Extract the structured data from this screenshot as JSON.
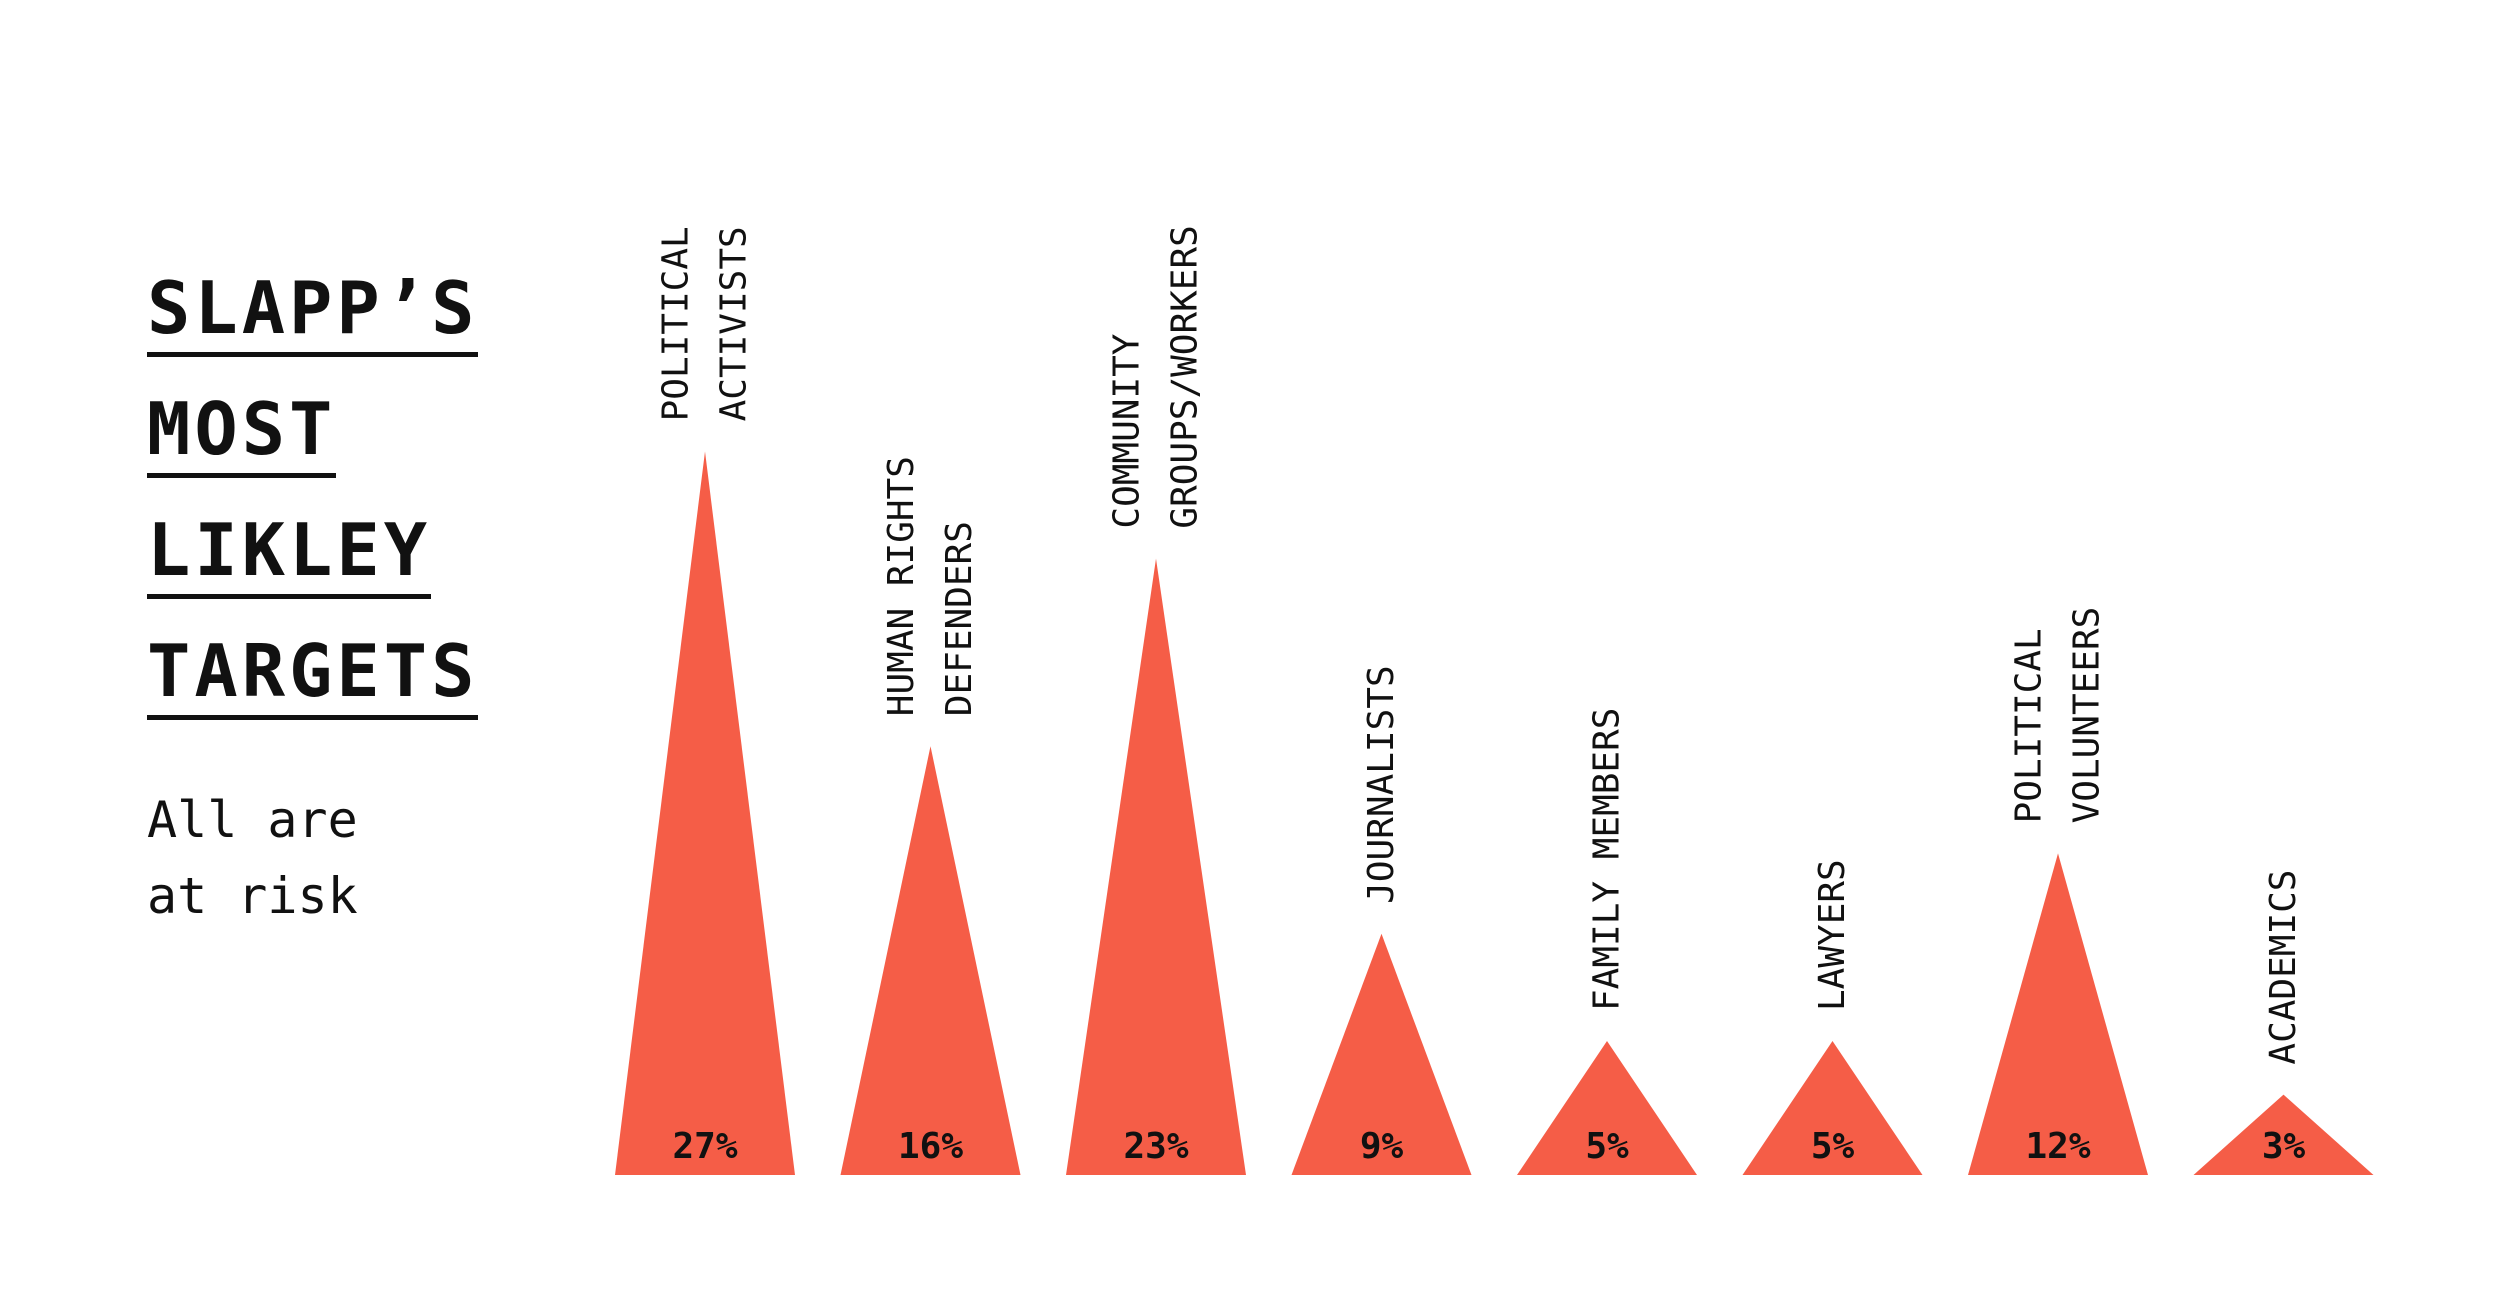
{
  "title": {
    "lines": [
      "SLAPP’S",
      "MOST",
      "LIKLEY",
      "TARGETS"
    ]
  },
  "subtitle": {
    "lines": [
      "All are",
      "at risk"
    ]
  },
  "colors": {
    "bar": "#f55d47",
    "text": "#111111",
    "background": "#ffffff"
  },
  "chart_data": {
    "type": "bar",
    "shape": "triangle",
    "categories": [
      [
        "POLITICAL",
        "ACTIVISTS"
      ],
      [
        "HUMAN RIGHTS",
        "DEFENDERS"
      ],
      [
        "COMMUNITY",
        "GROUPS/WORKERS"
      ],
      [
        "JOURNALISTS"
      ],
      [
        "FAMILY MEMBERS"
      ],
      [
        "LAWYERS"
      ],
      [
        "POLITICAL",
        "VOLUNTEERS"
      ],
      [
        "ACADEMICS"
      ]
    ],
    "values": [
      27,
      16,
      23,
      9,
      5,
      5,
      12,
      3
    ],
    "value_labels": [
      "27%",
      "16%",
      "23%",
      "9%",
      "5%",
      "5%",
      "12%",
      "3%"
    ],
    "unit": "%"
  }
}
